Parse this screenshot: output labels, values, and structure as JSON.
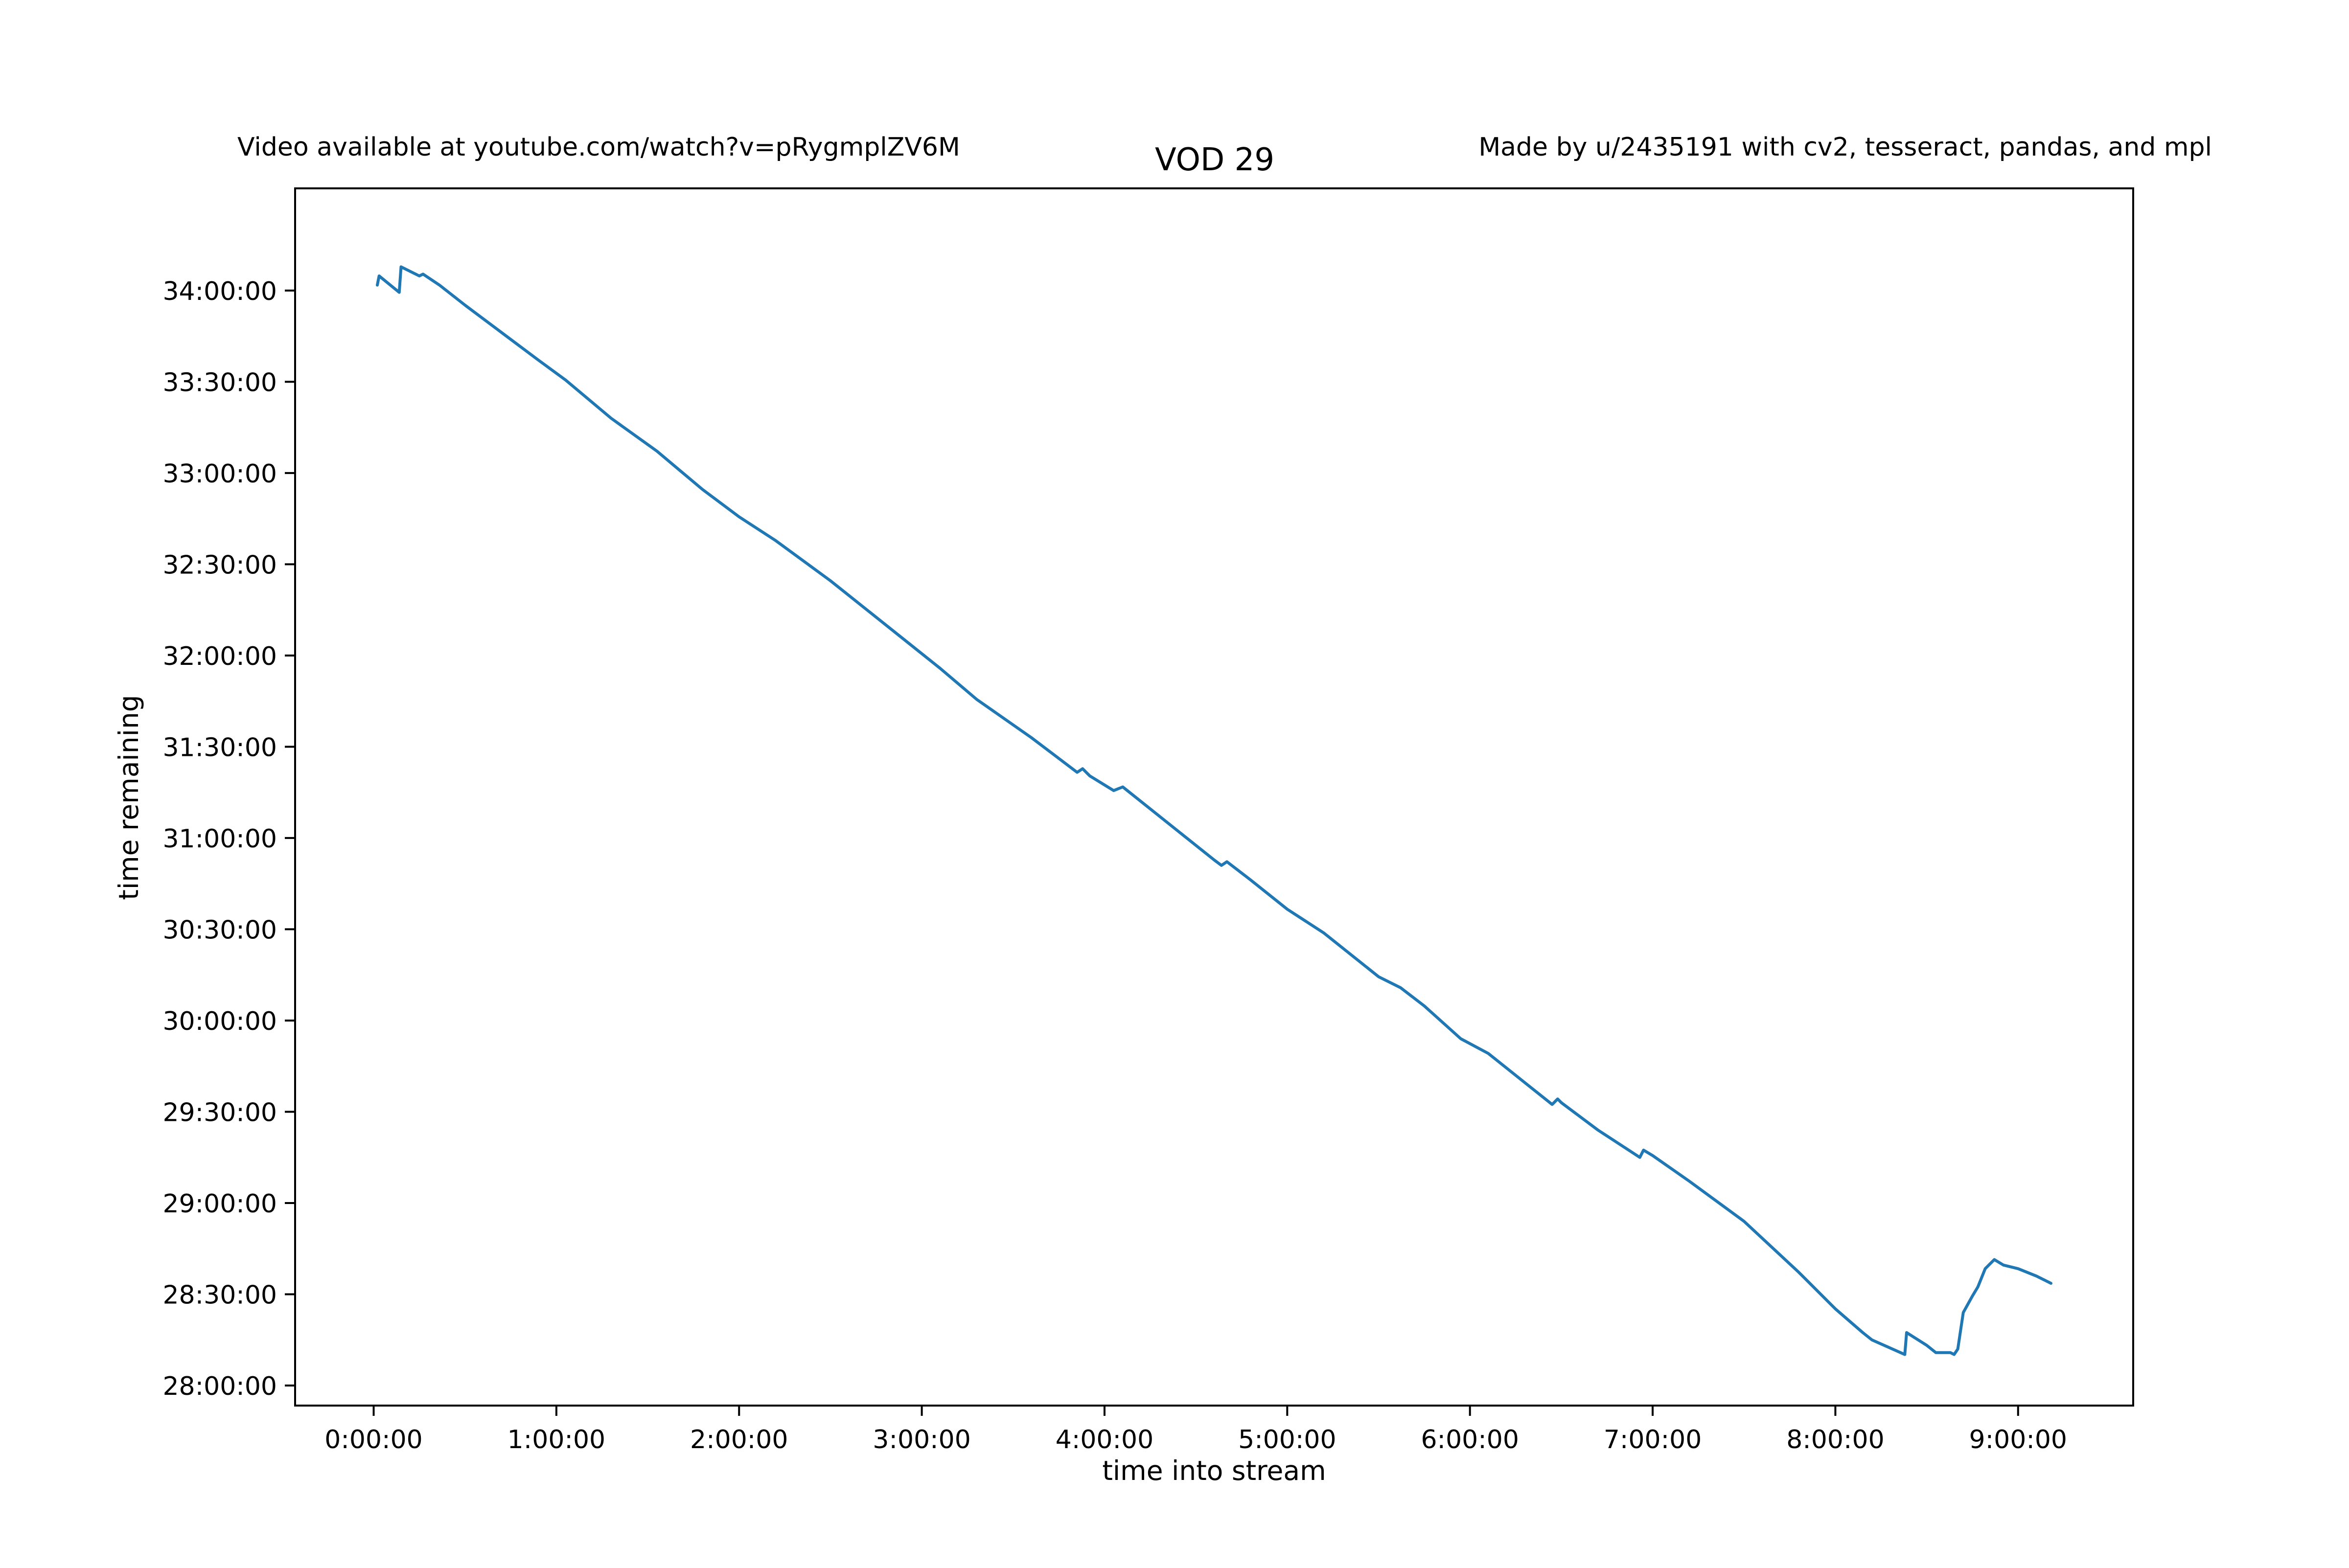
{
  "figure": {
    "left_note": "Video available at youtube.com/watch?v=pRygmplZV6M",
    "right_note": "Made by u/2435191 with cv2, tesseract, pandas, and mpl"
  },
  "chart_data": {
    "type": "line",
    "title": "VOD 29",
    "xlabel": "time into stream",
    "ylabel": "time remaining",
    "x_unit": "hours",
    "y_unit": "hours",
    "xlim": [
      -0.43,
      9.63
    ],
    "ylim": [
      27.89,
      34.56
    ],
    "grid": false,
    "x_ticks": [
      {
        "value": 0,
        "label": "0:00:00"
      },
      {
        "value": 1,
        "label": "1:00:00"
      },
      {
        "value": 2,
        "label": "2:00:00"
      },
      {
        "value": 3,
        "label": "3:00:00"
      },
      {
        "value": 4,
        "label": "4:00:00"
      },
      {
        "value": 5,
        "label": "5:00:00"
      },
      {
        "value": 6,
        "label": "6:00:00"
      },
      {
        "value": 7,
        "label": "7:00:00"
      },
      {
        "value": 8,
        "label": "8:00:00"
      },
      {
        "value": 9,
        "label": "9:00:00"
      }
    ],
    "y_ticks": [
      {
        "value": 28.0,
        "label": "28:00:00"
      },
      {
        "value": 28.5,
        "label": "28:30:00"
      },
      {
        "value": 29.0,
        "label": "29:00:00"
      },
      {
        "value": 29.5,
        "label": "29:30:00"
      },
      {
        "value": 30.0,
        "label": "30:00:00"
      },
      {
        "value": 30.5,
        "label": "30:30:00"
      },
      {
        "value": 31.0,
        "label": "31:00:00"
      },
      {
        "value": 31.5,
        "label": "31:30:00"
      },
      {
        "value": 32.0,
        "label": "32:00:00"
      },
      {
        "value": 32.5,
        "label": "32:30:00"
      },
      {
        "value": 33.0,
        "label": "33:00:00"
      },
      {
        "value": 33.5,
        "label": "33:30:00"
      },
      {
        "value": 34.0,
        "label": "34:00:00"
      }
    ],
    "series": [
      {
        "color": "#1f77b4",
        "x": [
          0.02,
          0.03,
          0.14,
          0.15,
          0.25,
          0.27,
          0.33,
          0.36,
          0.5,
          0.7,
          0.9,
          1.05,
          1.3,
          1.55,
          1.8,
          2.0,
          2.2,
          2.5,
          2.8,
          3.1,
          3.3,
          3.6,
          3.85,
          3.88,
          3.92,
          4.05,
          4.1,
          4.3,
          4.6,
          4.64,
          4.67,
          4.8,
          5.0,
          5.2,
          5.5,
          5.62,
          5.75,
          5.95,
          6.1,
          6.3,
          6.45,
          6.48,
          6.5,
          6.7,
          6.93,
          6.95,
          7.0,
          7.2,
          7.5,
          7.8,
          8.0,
          8.15,
          8.2,
          8.38,
          8.39,
          8.5,
          8.55,
          8.63,
          8.65,
          8.67,
          8.7,
          8.75,
          8.78,
          8.82,
          8.87,
          8.92,
          9.0,
          9.1,
          9.18
        ],
        "y": [
          34.03,
          34.08,
          33.99,
          34.13,
          34.08,
          34.09,
          34.05,
          34.03,
          33.92,
          33.77,
          33.62,
          33.51,
          33.3,
          33.12,
          32.91,
          32.76,
          32.63,
          32.41,
          32.17,
          31.93,
          31.76,
          31.55,
          31.36,
          31.38,
          31.34,
          31.26,
          31.28,
          31.12,
          30.88,
          30.85,
          30.87,
          30.77,
          30.61,
          30.48,
          30.24,
          30.18,
          30.08,
          29.9,
          29.82,
          29.66,
          29.54,
          29.57,
          29.55,
          29.4,
          29.25,
          29.29,
          29.26,
          29.12,
          28.9,
          28.62,
          28.42,
          28.29,
          28.25,
          28.17,
          28.29,
          28.22,
          28.18,
          28.18,
          28.17,
          28.2,
          28.4,
          28.49,
          28.54,
          28.64,
          28.69,
          28.66,
          28.64,
          28.6,
          28.56
        ]
      }
    ]
  }
}
